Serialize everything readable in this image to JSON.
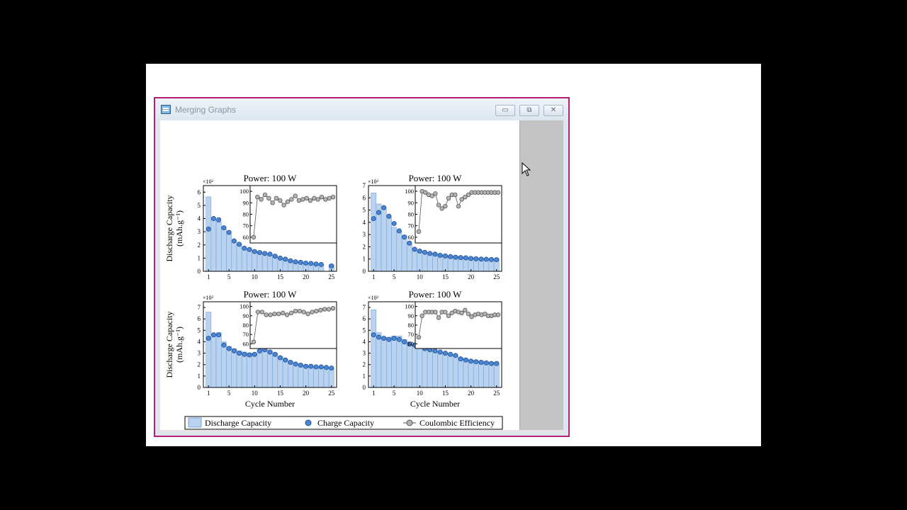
{
  "window": {
    "title": "Merging Graphs",
    "minimize_label": "▭",
    "maximize_label": "⧉",
    "close_label": "✕",
    "icon": "graph-window-icon"
  },
  "colors": {
    "bar_fill": "#b8d2ef",
    "bar_stroke": "#7aa4d6",
    "charge_fill": "#4a86d4",
    "charge_stroke": "#1e4f96",
    "ce_fill": "#b4b4b4",
    "ce_stroke": "#555555",
    "frame": "#b3207a"
  },
  "chart_data": [
    {
      "type": "bar",
      "title": "Power: 100 W",
      "ylabel_line1": "Discharge Capacity",
      "ylabel_line2": "(mAh.g⁻¹)",
      "xlabel": "",
      "multiplier": "×10²",
      "ylim": [
        0,
        6.5
      ],
      "yticks": [
        0,
        1,
        2,
        3,
        4,
        5,
        6
      ],
      "xticks": [
        1,
        5,
        10,
        15,
        20,
        25
      ],
      "x": [
        1,
        2,
        3,
        4,
        5,
        6,
        7,
        8,
        9,
        10,
        11,
        12,
        13,
        14,
        15,
        16,
        17,
        18,
        19,
        20,
        21,
        22,
        23,
        25
      ],
      "series": [
        {
          "name": "Discharge Capacity",
          "values": [
            5.65,
            3.9,
            3.75,
            3.2,
            2.8,
            2.3,
            2.05,
            1.75,
            1.65,
            1.5,
            1.4,
            1.35,
            1.3,
            1.15,
            1.0,
            0.92,
            0.8,
            0.72,
            0.68,
            0.62,
            0.6,
            0.55,
            0.52,
            0.5
          ]
        },
        {
          "name": "Charge Capacity",
          "values": [
            3.2,
            4.0,
            3.9,
            3.3,
            2.95,
            2.3,
            2.05,
            1.75,
            1.65,
            1.5,
            1.42,
            1.35,
            1.3,
            1.15,
            1.0,
            0.92,
            0.8,
            0.72,
            0.68,
            0.62,
            0.6,
            0.55,
            0.52,
            0.4
          ]
        }
      ],
      "inset": {
        "ylim": [
          55,
          105
        ],
        "yticks": [
          60,
          70,
          80,
          90,
          100
        ],
        "x": [
          1,
          2,
          3,
          4,
          5,
          6,
          7,
          8,
          9,
          10,
          11,
          12,
          13,
          14,
          15,
          16,
          17,
          18,
          19,
          20,
          21,
          22
        ],
        "values": [
          60,
          95,
          93,
          97,
          94,
          90,
          94,
          92,
          88,
          91,
          93,
          96,
          92,
          93,
          94,
          92,
          94,
          93,
          95,
          93,
          94,
          95
        ]
      }
    },
    {
      "type": "bar",
      "title": "Power: 100 W",
      "xlabel": "",
      "multiplier": "×10²",
      "ylim": [
        0,
        7
      ],
      "yticks": [
        0,
        1,
        2,
        3,
        4,
        5,
        6,
        7
      ],
      "xticks": [
        1,
        5,
        10,
        15,
        20,
        25
      ],
      "x": [
        1,
        2,
        3,
        4,
        5,
        6,
        7,
        8,
        9,
        10,
        11,
        12,
        13,
        14,
        15,
        16,
        17,
        18,
        19,
        20,
        21,
        22,
        23,
        24,
        25
      ],
      "series": [
        {
          "name": "Discharge Capacity",
          "values": [
            6.4,
            5.5,
            5.1,
            4.4,
            3.6,
            3.2,
            2.9,
            2.2,
            1.85,
            1.7,
            1.6,
            1.5,
            1.45,
            1.35,
            1.3,
            1.25,
            1.2,
            1.18,
            1.15,
            1.1,
            1.08,
            1.05,
            1.03,
            1.0,
            1.0
          ]
        },
        {
          "name": "Charge Capacity",
          "values": [
            4.3,
            4.8,
            5.2,
            4.5,
            3.9,
            3.3,
            2.8,
            2.3,
            1.8,
            1.65,
            1.55,
            1.45,
            1.4,
            1.3,
            1.25,
            1.2,
            1.15,
            1.12,
            1.1,
            1.05,
            1.02,
            1.0,
            0.98,
            0.96,
            0.95
          ]
        }
      ],
      "inset": {
        "ylim": [
          55,
          105
        ],
        "yticks": [
          60,
          70,
          80,
          90,
          100
        ],
        "x": [
          1,
          2,
          3,
          4,
          5,
          6,
          7,
          8,
          9,
          10,
          11,
          12,
          13,
          14,
          15,
          16,
          17,
          18,
          19,
          20,
          21,
          22,
          23,
          24,
          25
        ],
        "values": [
          65,
          100,
          99,
          97,
          96,
          98,
          88,
          85,
          87,
          94,
          97,
          97,
          87,
          93,
          95,
          97,
          99,
          99,
          99,
          99,
          99,
          99,
          99,
          99,
          99
        ]
      }
    },
    {
      "type": "bar",
      "title": "Power: 100 W",
      "ylabel_line1": "Discharge Capacity",
      "ylabel_line2": "(mAh.g⁻¹)",
      "xlabel": "Cycle Number",
      "multiplier": "×10²",
      "ylim": [
        0,
        7.5
      ],
      "yticks": [
        0,
        1,
        2,
        3,
        4,
        5,
        6,
        7
      ],
      "xticks": [
        1,
        5,
        10,
        15,
        20,
        25
      ],
      "x": [
        1,
        2,
        3,
        4,
        5,
        6,
        7,
        8,
        9,
        10,
        11,
        12,
        13,
        14,
        15,
        16,
        17,
        18,
        19,
        20,
        21,
        22,
        23,
        24,
        25
      ],
      "series": [
        {
          "name": "Discharge Capacity",
          "values": [
            6.6,
            4.6,
            4.8,
            4.0,
            3.6,
            3.4,
            3.2,
            3.1,
            3.0,
            2.9,
            3.3,
            3.3,
            3.2,
            3.0,
            2.7,
            2.5,
            2.3,
            2.1,
            2.0,
            1.9,
            1.85,
            1.8,
            1.8,
            1.75,
            1.7
          ]
        },
        {
          "name": "Charge Capacity",
          "values": [
            4.3,
            4.6,
            4.6,
            3.7,
            3.4,
            3.2,
            3.0,
            2.9,
            2.85,
            2.9,
            3.2,
            3.3,
            3.1,
            2.9,
            2.6,
            2.4,
            2.2,
            2.05,
            1.95,
            1.85,
            1.85,
            1.8,
            1.8,
            1.75,
            1.7
          ]
        }
      ],
      "inset": {
        "ylim": [
          55,
          105
        ],
        "yticks": [
          60,
          70,
          80,
          90,
          100
        ],
        "x": [
          1,
          2,
          3,
          4,
          5,
          6,
          7,
          8,
          9,
          10,
          11,
          12,
          13,
          14,
          15,
          16,
          17,
          18,
          19,
          20
        ],
        "values": [
          62,
          94,
          94,
          91,
          91,
          92,
          92,
          93,
          91,
          93,
          95,
          95,
          94,
          92,
          94,
          95,
          96,
          97,
          97,
          98
        ]
      }
    },
    {
      "type": "bar",
      "title": "Power: 100 W",
      "xlabel": "Cycle Number",
      "multiplier": "×10²",
      "ylim": [
        0,
        7.5
      ],
      "yticks": [
        0,
        1,
        2,
        3,
        4,
        5,
        6,
        7
      ],
      "xticks": [
        1,
        5,
        10,
        15,
        20,
        25
      ],
      "x": [
        1,
        2,
        3,
        4,
        5,
        6,
        7,
        8,
        9,
        10,
        11,
        12,
        13,
        14,
        15,
        16,
        17,
        18,
        19,
        20,
        21,
        22,
        23,
        24,
        25
      ],
      "series": [
        {
          "name": "Discharge Capacity",
          "values": [
            6.8,
            4.8,
            4.4,
            4.4,
            4.5,
            4.5,
            4.2,
            4.0,
            3.8,
            3.7,
            3.4,
            3.3,
            3.2,
            3.1,
            3.0,
            2.9,
            2.8,
            2.6,
            2.5,
            2.4,
            2.35,
            2.3,
            2.25,
            2.2,
            2.2
          ]
        },
        {
          "name": "Charge Capacity",
          "values": [
            4.6,
            4.4,
            4.3,
            4.2,
            4.3,
            4.2,
            4.0,
            3.8,
            3.7,
            3.6,
            3.4,
            3.3,
            3.2,
            3.1,
            3.0,
            2.9,
            2.8,
            2.5,
            2.4,
            2.3,
            2.25,
            2.2,
            2.15,
            2.1,
            2.1
          ]
        }
      ],
      "inset": {
        "ylim": [
          55,
          105
        ],
        "yticks": [
          60,
          70,
          80,
          90,
          100
        ],
        "x": [
          1,
          2,
          3,
          4,
          5,
          6,
          7,
          8,
          9,
          10,
          11,
          12,
          13,
          14,
          15,
          16,
          17,
          18,
          19,
          20,
          21,
          22,
          23,
          24,
          25
        ],
        "values": [
          67,
          90,
          94,
          94,
          94,
          94,
          88,
          94,
          94,
          90,
          93,
          95,
          94,
          93,
          96,
          92,
          89,
          91,
          92,
          91,
          92,
          90,
          90,
          91,
          91
        ]
      }
    }
  ],
  "legend": {
    "discharge": "Discharge Capacity",
    "charge": "Charge Capacity",
    "ce": "Coulombic Efficiency"
  }
}
